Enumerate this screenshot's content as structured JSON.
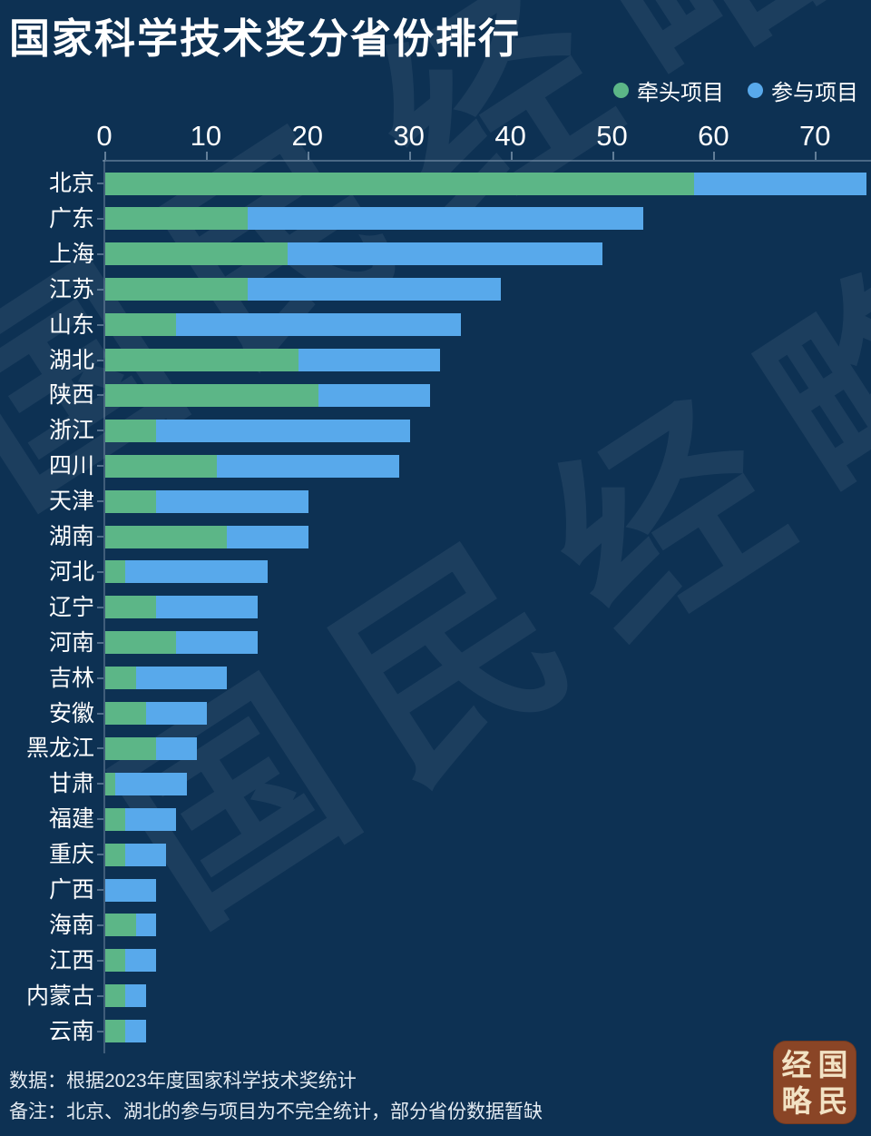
{
  "title": "国家科学技术奖分省份排行",
  "legend": {
    "items": [
      {
        "label": "牵头项目",
        "color": "#5cb687"
      },
      {
        "label": "参与项目",
        "color": "#58a9eb"
      }
    ]
  },
  "chart_data": {
    "type": "bar",
    "orientation": "horizontal",
    "stacked": true,
    "title": "国家科学技术奖分省份排行",
    "categories": [
      "北京",
      "广东",
      "上海",
      "江苏",
      "山东",
      "湖北",
      "陕西",
      "浙江",
      "四川",
      "天津",
      "湖南",
      "河北",
      "辽宁",
      "河南",
      "吉林",
      "安徽",
      "黑龙江",
      "甘肃",
      "福建",
      "重庆",
      "广西",
      "海南",
      "江西",
      "内蒙古",
      "云南"
    ],
    "series": [
      {
        "name": "牵头项目",
        "color": "#5cb687",
        "values": [
          58,
          14,
          18,
          14,
          7,
          19,
          21,
          5,
          11,
          5,
          12,
          2,
          5,
          7,
          3,
          4,
          5,
          1,
          2,
          2,
          0,
          3,
          2,
          2,
          2
        ]
      },
      {
        "name": "参与项目",
        "color": "#58a9eb",
        "values": [
          17,
          39,
          31,
          25,
          28,
          14,
          11,
          25,
          18,
          15,
          8,
          14,
          10,
          8,
          9,
          6,
          4,
          7,
          5,
          4,
          5,
          2,
          3,
          2,
          2
        ]
      }
    ],
    "x_ticks": [
      0,
      10,
      20,
      30,
      40,
      50,
      60,
      70
    ],
    "xlim": [
      0,
      75.5
    ],
    "xlabel": "",
    "ylabel": "",
    "grid": false,
    "legend_position": "top-right"
  },
  "notes": {
    "source": "数据：根据2023年度国家科学技术奖统计",
    "remark": "备注：北京、湖北的参与项目为不完全统计，部分省份数据暂缺"
  },
  "watermark": {
    "text": "国民经略"
  },
  "stamp": {
    "chars": [
      "国",
      "民",
      "经",
      "略"
    ],
    "background": "#8a4526",
    "foreground": "#f2e2c4"
  },
  "colors": {
    "background": "#0d3153",
    "text": "#ffffff",
    "lead_green": "#5cb687",
    "participate_blue": "#58a9eb"
  }
}
